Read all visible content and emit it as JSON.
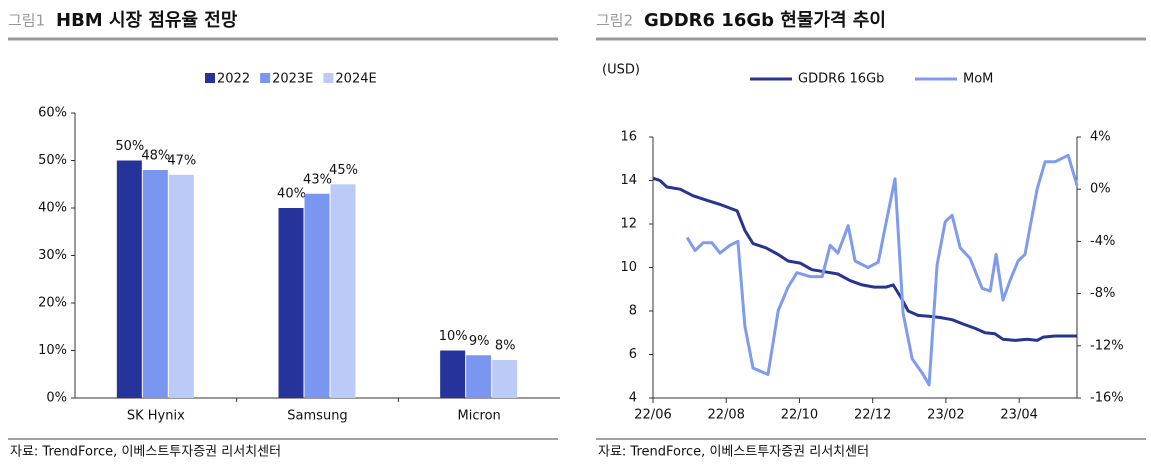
{
  "chart_data": [
    {
      "type": "bar",
      "label": "그림1",
      "title": "HBM 시장 점유율 전망",
      "source": "자료: TrendForce, 이베스트투자증권 리서치센터",
      "categories": [
        "SK Hynix",
        "Samsung",
        "Micron"
      ],
      "series": [
        {
          "name": "2022",
          "color": "#25339a",
          "values": [
            50,
            40,
            10
          ],
          "value_labels": [
            "50%",
            "40%",
            "10%"
          ]
        },
        {
          "name": "2023E",
          "color": "#7b96f0",
          "values": [
            48,
            43,
            9
          ],
          "value_labels": [
            "48%",
            "43%",
            "9%"
          ]
        },
        {
          "name": "2024E",
          "color": "#bccaf7",
          "values": [
            47,
            45,
            8
          ],
          "value_labels": [
            "47%",
            "45%",
            "8%"
          ]
        }
      ],
      "ylim": [
        0,
        60
      ],
      "yticks": [
        {
          "value": 0,
          "label": "0%"
        },
        {
          "value": 10,
          "label": "10%"
        },
        {
          "value": 20,
          "label": "20%"
        },
        {
          "value": 30,
          "label": "30%"
        },
        {
          "value": 40,
          "label": "40%"
        },
        {
          "value": 50,
          "label": "50%"
        },
        {
          "value": 60,
          "label": "60%"
        }
      ],
      "grid": false,
      "legend": "top"
    },
    {
      "type": "line",
      "label": "그림2",
      "title": "GDDR6 16Gb 현물가격 추이",
      "source": "자료: TrendForce, 이베스트투자증권 리서치센터",
      "y_label": "(USD)",
      "xlim": [
        0,
        11.58
      ],
      "xticks": [
        {
          "value": 0,
          "label": "22/06"
        },
        {
          "value": 2,
          "label": "22/08"
        },
        {
          "value": 4,
          "label": "22/10"
        },
        {
          "value": 6,
          "label": "22/12"
        },
        {
          "value": 8,
          "label": "23/02"
        },
        {
          "value": 10,
          "label": "23/04"
        }
      ],
      "ylim": [
        4,
        16
      ],
      "yticks": [
        4,
        6,
        8,
        10,
        12,
        14,
        16
      ],
      "y2lim": [
        -16,
        4
      ],
      "y2ticks": [
        {
          "value": -16,
          "label": "-16%"
        },
        {
          "value": -12,
          "label": "-12%"
        },
        {
          "value": -8,
          "label": "-8%"
        },
        {
          "value": -4,
          "label": "-4%"
        },
        {
          "value": 0,
          "label": "0%"
        },
        {
          "value": 4,
          "label": "4%"
        }
      ],
      "legend": "top",
      "series": [
        {
          "name": "GDDR6 16Gb",
          "color": "#27358f",
          "x": [
            0,
            0.19,
            0.38,
            0.74,
            1.09,
            1.45,
            1.83,
            2.3,
            2.51,
            2.73,
            3.09,
            3.42,
            3.69,
            4.02,
            4.34,
            4.7,
            5.05,
            5.38,
            5.71,
            6.04,
            6.37,
            6.56,
            6.78,
            6.97,
            7.24,
            7.57,
            7.84,
            8.17,
            8.47,
            8.8,
            9.07,
            9.34,
            9.56,
            9.89,
            10.22,
            10.49,
            10.66,
            10.98,
            11.58
          ],
          "values": [
            14.1,
            14.0,
            13.7,
            13.6,
            13.3,
            13.1,
            12.9,
            12.6,
            11.7,
            11.1,
            10.9,
            10.6,
            10.3,
            10.2,
            9.9,
            9.8,
            9.7,
            9.4,
            9.2,
            9.1,
            9.1,
            9.2,
            8.6,
            8.0,
            7.8,
            7.75,
            7.7,
            7.6,
            7.4,
            7.2,
            7.0,
            6.95,
            6.7,
            6.65,
            6.7,
            6.65,
            6.8,
            6.85,
            6.85
          ]
        },
        {
          "name": "MoM",
          "color": "#7f9bf0",
          "axis": "y2",
          "x": [
            0.93,
            1.15,
            1.37,
            1.61,
            1.83,
            2.1,
            2.32,
            2.51,
            2.73,
            3.14,
            3.42,
            3.69,
            3.93,
            4.29,
            4.62,
            4.84,
            5.05,
            5.33,
            5.52,
            5.87,
            6.15,
            6.42,
            6.61,
            6.83,
            7.08,
            7.38,
            7.54,
            7.76,
            7.98,
            8.17,
            8.39,
            8.66,
            8.99,
            9.21,
            9.37,
            9.56,
            9.75,
            9.97,
            10.16,
            10.49,
            10.71,
            10.98,
            11.34,
            11.58
          ],
          "values": [
            -3.7,
            -4.7,
            -4.1,
            -4.1,
            -4.9,
            -4.3,
            -4.0,
            -10.5,
            -13.7,
            -14.2,
            -9.3,
            -7.5,
            -6.4,
            -6.7,
            -6.7,
            -4.3,
            -4.9,
            -2.8,
            -5.5,
            -6.0,
            -5.6,
            -1.8,
            0.8,
            -9.5,
            -13.0,
            -14.2,
            -15.0,
            -5.8,
            -2.5,
            -2.0,
            -4.5,
            -5.3,
            -7.6,
            -7.8,
            -5.0,
            -8.5,
            -7.0,
            -5.5,
            -5.0,
            0.0,
            2.1,
            2.1,
            2.6,
            0.3
          ]
        }
      ]
    }
  ]
}
